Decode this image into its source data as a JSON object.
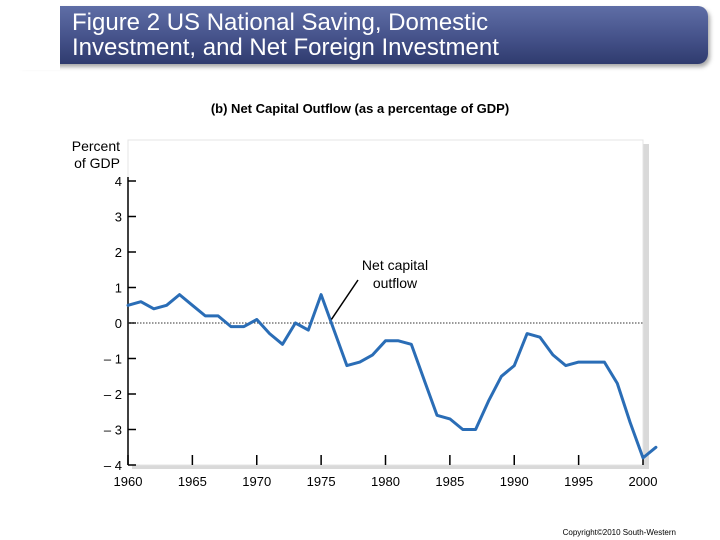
{
  "title": {
    "line1": "Figure 2 US National Saving, Domestic",
    "line2": "Investment, and Net Foreign Investment"
  },
  "copyright": "Copyright©2010 South-Western",
  "chart_data": {
    "type": "line",
    "title": "(b) Net Capital Outflow (as a percentage of GDP)",
    "ylabel_line1": "Percent",
    "ylabel_line2": "of GDP",
    "xlabel": "",
    "ylim": [
      -4,
      4
    ],
    "xlim": [
      1960,
      2000
    ],
    "yticks": [
      4,
      3,
      2,
      1,
      0,
      -1,
      -2,
      -3,
      -4
    ],
    "ytick_labels": [
      "4",
      "3",
      "2",
      "1",
      "0",
      "– 1",
      "– 2",
      "– 3",
      "– 4"
    ],
    "xticks": [
      1960,
      1965,
      1970,
      1975,
      1980,
      1985,
      1990,
      1995,
      2000
    ],
    "xtick_labels": [
      "1960",
      "1965",
      "1970",
      "1975",
      "1980",
      "1985",
      "1990",
      "1995",
      "2000"
    ],
    "grid": false,
    "zero_line": "dotted",
    "annotation": {
      "line1": "Net capital",
      "line2": "outflow",
      "points_to": [
        1975.8,
        0.1
      ]
    },
    "line_color": "#2a6db6",
    "series": [
      {
        "x": [
          1960,
          1961,
          1962,
          1963,
          1964,
          1965,
          1966,
          1967,
          1968,
          1969,
          1970,
          1971,
          1972,
          1973,
          1974,
          1975,
          1976,
          1977,
          1978,
          1979,
          1980,
          1981,
          1982,
          1983,
          1984,
          1985,
          1986,
          1987,
          1988,
          1989,
          1990,
          1991,
          1992,
          1993,
          1994,
          1995,
          1996,
          1997,
          1998,
          1999,
          2000,
          2001
        ],
        "y": [
          0.5,
          0.6,
          0.4,
          0.5,
          0.8,
          0.5,
          0.2,
          0.2,
          -0.1,
          -0.1,
          0.1,
          -0.3,
          -0.6,
          0.0,
          -0.2,
          0.8,
          -0.2,
          -1.2,
          -1.1,
          -0.9,
          -0.5,
          -0.5,
          -0.6,
          -1.6,
          -2.6,
          -2.7,
          -3.0,
          -3.0,
          -2.2,
          -1.5,
          -1.2,
          -0.3,
          -0.4,
          -0.9,
          -1.2,
          -1.1,
          -1.1,
          -1.1,
          -1.7,
          -2.8,
          -3.8,
          -3.5
        ]
      }
    ]
  }
}
